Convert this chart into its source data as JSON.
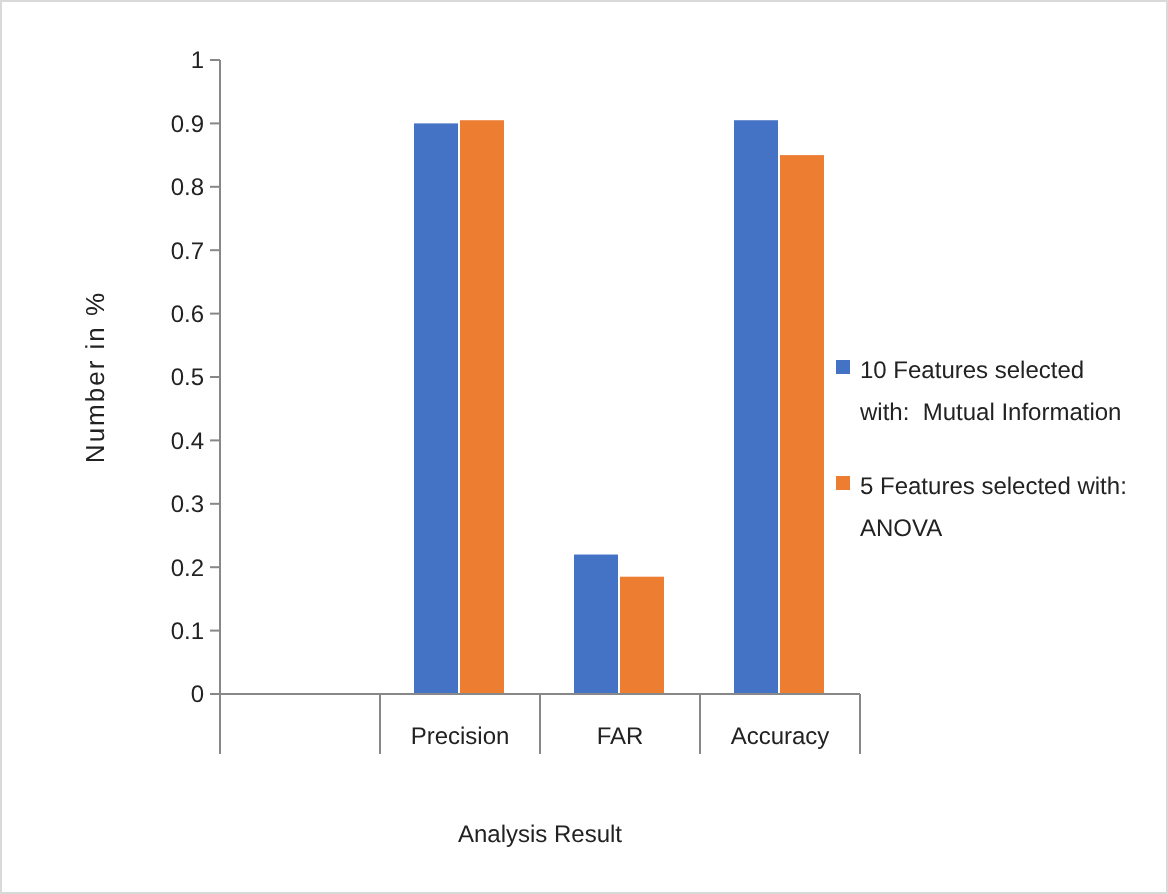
{
  "chart_data": {
    "type": "bar",
    "xlabel": "Analysis Result",
    "ylabel": "Number in %",
    "categories": [
      null,
      "Precision",
      "FAR",
      "Accuracy"
    ],
    "series": [
      {
        "name": "10 Features selected with:  Mutual Information",
        "color": "#4472c4",
        "values": [
          null,
          0.9,
          0.22,
          0.905
        ]
      },
      {
        "name": "5 Features selected with: ANOVA",
        "color": "#ed7d31",
        "values": [
          null,
          0.905,
          0.185,
          0.85
        ]
      }
    ],
    "ylim": [
      0,
      1
    ],
    "yticks": [
      0,
      0.1,
      0.2,
      0.3,
      0.4,
      0.5,
      0.6,
      0.7,
      0.8,
      0.9,
      1
    ],
    "grid": false,
    "legend": "right"
  }
}
